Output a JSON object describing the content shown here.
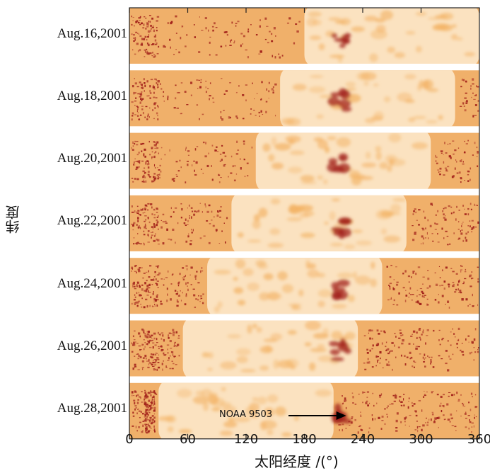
{
  "chart_data": {
    "type": "heatmap",
    "title": "",
    "xlabel": "太阳经度 /(°)",
    "ylabel": "纬度",
    "xlim": [
      0,
      360
    ],
    "xticks": [
      0,
      60,
      120,
      180,
      240,
      300,
      360
    ],
    "panels": [
      {
        "date": "Aug.16,2001",
        "disk_lon": [
          180,
          360
        ]
      },
      {
        "date": "Aug.18,2001",
        "disk_lon": [
          155,
          335
        ]
      },
      {
        "date": "Aug.20,2001",
        "disk_lon": [
          130,
          310
        ]
      },
      {
        "date": "Aug.22,2001",
        "disk_lon": [
          105,
          285
        ]
      },
      {
        "date": "Aug.24,2001",
        "disk_lon": [
          80,
          260
        ]
      },
      {
        "date": "Aug.26,2001",
        "disk_lon": [
          55,
          235
        ]
      },
      {
        "date": "Aug.28,2001",
        "disk_lon": [
          30,
          210
        ]
      }
    ],
    "annotation": {
      "text": "NOAA 9503",
      "lon": 207
    },
    "colors": {
      "background": "#f0b06a",
      "disk": "#fbe2c0",
      "disk_feature": "#f3b366",
      "active": "#a3231b",
      "separator": "#ffffff"
    }
  }
}
